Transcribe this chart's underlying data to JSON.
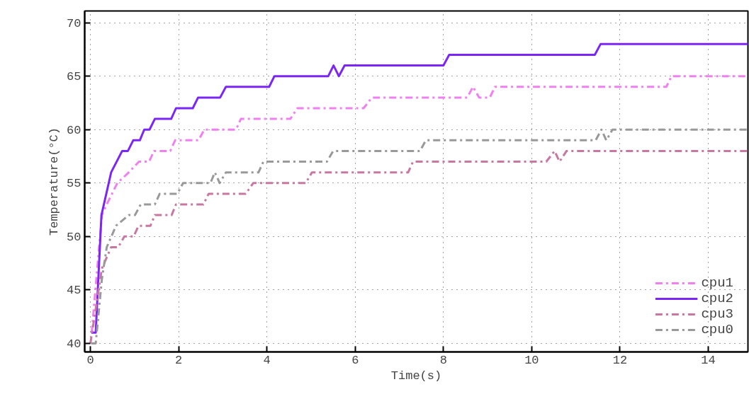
{
  "chart_data": {
    "type": "line",
    "xlabel": "Time(s)",
    "ylabel": "Temperature(°C)",
    "xlim": [
      -0.13,
      14.9
    ],
    "ylim": [
      39.2,
      71.1
    ],
    "xticks": [
      0,
      2,
      4,
      6,
      8,
      10,
      12,
      14
    ],
    "yticks": [
      40,
      45,
      50,
      55,
      60,
      65,
      70
    ],
    "grid": true,
    "legend": "bottom right",
    "series": [
      {
        "name": "cpu1",
        "color": "#f080f0",
        "line_style": "dashed",
        "x": [
          0.03,
          0.26,
          0.37,
          0.61,
          0.87,
          1.1,
          1.33,
          1.44,
          1.81,
          1.92,
          2.45,
          2.58,
          3.3,
          3.41,
          4.53,
          4.69,
          6.19,
          6.38,
          8.54,
          8.67,
          8.81,
          9.05,
          9.17,
          13.05,
          13.17,
          14.9
        ],
        "values": [
          41,
          52,
          53,
          55,
          56,
          57,
          57,
          58,
          58,
          59,
          59,
          60,
          60,
          61,
          61,
          62,
          62,
          63,
          63,
          64,
          63,
          63,
          64,
          64,
          65,
          65
        ]
      },
      {
        "name": "cpu2",
        "color": "#7b26f7",
        "line_style": "solid",
        "x": [
          0.02,
          0.12,
          0.25,
          0.47,
          0.72,
          0.85,
          0.97,
          1.12,
          1.22,
          1.34,
          1.46,
          1.83,
          1.94,
          2.32,
          2.44,
          2.94,
          3.07,
          4.05,
          4.17,
          5.39,
          5.51,
          5.63,
          5.76,
          8.0,
          8.13,
          11.43,
          11.56,
          14.9
        ],
        "values": [
          41,
          41,
          52,
          56,
          58,
          58,
          59,
          59,
          60,
          60,
          61,
          61,
          62,
          62,
          63,
          63,
          64,
          64,
          65,
          65,
          66,
          65,
          66,
          66,
          67,
          67,
          68,
          68
        ]
      },
      {
        "name": "cpu3",
        "color": "#c878a0",
        "line_style": "dashed",
        "x": [
          0.0,
          0.26,
          0.47,
          0.63,
          0.77,
          0.98,
          1.09,
          1.36,
          1.46,
          1.84,
          1.94,
          2.56,
          2.68,
          3.52,
          3.69,
          4.88,
          5.02,
          7.2,
          7.31,
          10.33,
          10.52,
          10.63,
          10.79,
          14.9
        ],
        "values": [
          40,
          47,
          49,
          49,
          50,
          50,
          51,
          51,
          52,
          52,
          53,
          53,
          54,
          54,
          55,
          55,
          56,
          56,
          57,
          57,
          58,
          57,
          58,
          58
        ]
      },
      {
        "name": "cpu0",
        "color": "#999999",
        "line_style": "dashed",
        "x": [
          0.02,
          0.12,
          0.26,
          0.37,
          0.58,
          0.87,
          1.01,
          1.14,
          1.46,
          1.57,
          1.97,
          2.1,
          2.72,
          2.82,
          2.93,
          3.07,
          3.81,
          3.92,
          5.36,
          5.5,
          7.47,
          7.6,
          11.45,
          11.58,
          11.69,
          11.83,
          14.9
        ],
        "values": [
          40,
          40,
          46,
          49,
          51,
          52,
          52,
          53,
          53,
          54,
          54,
          55,
          55,
          56,
          55,
          56,
          56,
          57,
          57,
          58,
          58,
          59,
          59,
          60,
          59,
          60,
          60
        ]
      }
    ]
  }
}
